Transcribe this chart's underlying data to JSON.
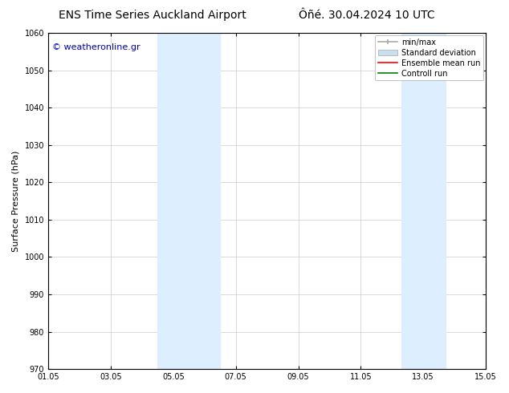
{
  "title_left": "ENS Time Series Auckland Airport",
  "title_right": "Ôñé. 30.04.2024 10 UTC",
  "ylabel": "Surface Pressure (hPa)",
  "xlabel_ticks": [
    "01.05",
    "03.05",
    "05.05",
    "07.05",
    "09.05",
    "11.05",
    "13.05",
    "15.05"
  ],
  "tick_positions": [
    0,
    2,
    4,
    6,
    8,
    10,
    12,
    14
  ],
  "ylim": [
    970,
    1060
  ],
  "yticks": [
    970,
    980,
    990,
    1000,
    1010,
    1020,
    1030,
    1040,
    1050,
    1060
  ],
  "xlim": [
    0,
    14
  ],
  "watermark": "© weatheronline.gr",
  "watermark_color": "#0000cc",
  "bg_color": "#ffffff",
  "plot_bg_color": "#ffffff",
  "band1_x0": 3.5,
  "band1_x1": 5.5,
  "band2_x0": 11.3,
  "band2_x1": 12.7,
  "band_color": "#ddeeff",
  "legend_items": [
    {
      "label": "min/max",
      "color": "#aaaaaa"
    },
    {
      "label": "Standard deviation",
      "color": "#c8dff0"
    },
    {
      "label": "Ensemble mean run",
      "color": "#ff0000"
    },
    {
      "label": "Controll run",
      "color": "#008000"
    }
  ],
  "grid_color": "#cccccc",
  "spine_color": "#000000",
  "title_fontsize": 10,
  "tick_fontsize": 7,
  "ylabel_fontsize": 8,
  "watermark_fontsize": 8,
  "legend_fontsize": 7
}
